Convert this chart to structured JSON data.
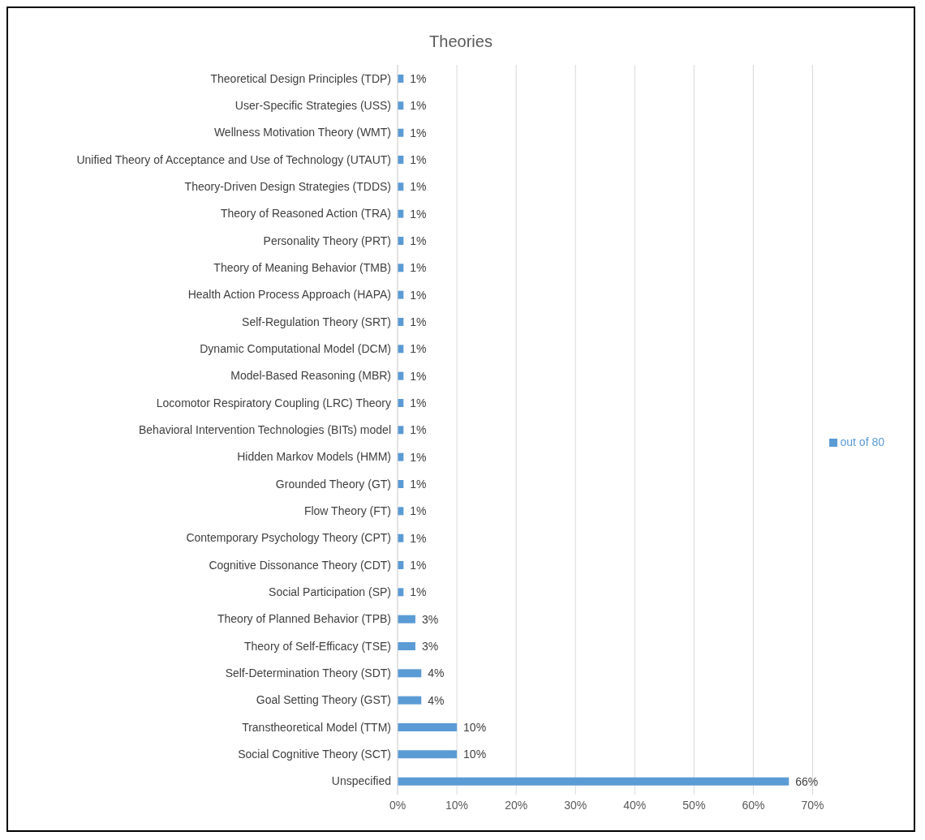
{
  "chart_data": {
    "type": "bar",
    "title": "Theories",
    "orientation": "horizontal",
    "categories": [
      "Theoretical Design Principles (TDP)",
      "User-Specific Strategies (USS)",
      "Wellness Motivation Theory (WMT)",
      "Unified Theory of Acceptance and Use of Technology (UTAUT)",
      "Theory-Driven Design Strategies (TDDS)",
      "Theory of Reasoned Action (TRA)",
      "Personality Theory (PRT)",
      "Theory of Meaning Behavior (TMB)",
      "Health Action Process Approach (HAPA)",
      "Self-Regulation Theory (SRT)",
      "Dynamic Computational Model (DCM)",
      "Model-Based Reasoning (MBR)",
      "Locomotor Respiratory Coupling (LRC) Theory",
      "Behavioral Intervention Technologies (BITs) model",
      "Hidden Markov Models (HMM)",
      "Grounded Theory (GT)",
      "Flow Theory (FT)",
      "Contemporary Psychology Theory (CPT)",
      "Cognitive Dissonance Theory (CDT)",
      "Social Participation (SP)",
      "Theory of Planned Behavior (TPB)",
      "Theory of Self-Efficacy (TSE)",
      "Self-Determination Theory (SDT)",
      "Goal Setting Theory (GST)",
      "Transtheoretical Model (TTM)",
      "Social Cognitive Theory (SCT)",
      "Unspecified"
    ],
    "series": [
      {
        "name": "out of 80",
        "color": "#5b9bd5",
        "values": [
          1,
          1,
          1,
          1,
          1,
          1,
          1,
          1,
          1,
          1,
          1,
          1,
          1,
          1,
          1,
          1,
          1,
          1,
          1,
          1,
          3,
          3,
          4,
          4,
          10,
          10,
          66
        ],
        "value_labels": [
          "1%",
          "1%",
          "1%",
          "1%",
          "1%",
          "1%",
          "1%",
          "1%",
          "1%",
          "1%",
          "1%",
          "1%",
          "1%",
          "1%",
          "1%",
          "1%",
          "1%",
          "1%",
          "1%",
          "1%",
          "3%",
          "3%",
          "4%",
          "4%",
          "10%",
          "10%",
          "66%"
        ]
      }
    ],
    "xlim": [
      0,
      70
    ],
    "xticks": [
      {
        "value": 0,
        "label": "0%"
      },
      {
        "value": 10,
        "label": "10%"
      },
      {
        "value": 20,
        "label": "20%"
      },
      {
        "value": 30,
        "label": "30%"
      },
      {
        "value": 40,
        "label": "40%"
      },
      {
        "value": 50,
        "label": "50%"
      },
      {
        "value": 60,
        "label": "60%"
      },
      {
        "value": 70,
        "label": "70%"
      }
    ],
    "grid": "x",
    "legend": "right"
  }
}
